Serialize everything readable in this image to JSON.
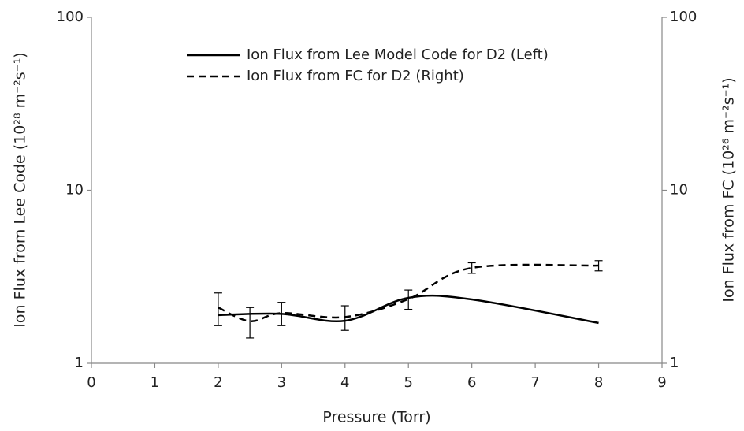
{
  "chart_data": {
    "type": "line",
    "xlabel": "Pressure (Torr)",
    "ylabel": "Ion Flux from Lee Code (10²⁸ m⁻²s⁻¹)",
    "y2label": "Ion Flux from FC (10²⁶ m⁻²s⁻¹)",
    "xlim": [
      0,
      9
    ],
    "xticks": [
      0,
      1,
      2,
      3,
      4,
      5,
      6,
      7,
      8,
      9
    ],
    "ylim": [
      1,
      100
    ],
    "yticks": [
      1,
      10,
      100
    ],
    "y2lim": [
      1,
      100
    ],
    "y2ticks": [
      1,
      10,
      100
    ],
    "log_y": true,
    "legend": "upper center",
    "series": [
      {
        "name": "Ion Flux from Lee Model Code for D2 (Left)",
        "color": "#000000",
        "dash": "solid",
        "x": [
          2,
          3,
          4,
          5,
          6,
          8
        ],
        "values": [
          1.9,
          1.93,
          1.76,
          2.39,
          2.34,
          1.71
        ]
      },
      {
        "name": "Ion Flux from FC for D2 (Right)",
        "color": "#000000",
        "dash": "dashed",
        "axis": "y2",
        "x": [
          2,
          2.5,
          3,
          4,
          5,
          6,
          8
        ],
        "values": [
          2.1,
          1.75,
          1.95,
          1.85,
          2.35,
          3.56,
          3.67
        ],
        "errors": [
          0.45,
          0.35,
          0.3,
          0.3,
          0.3,
          0.25,
          0.25
        ]
      }
    ]
  }
}
